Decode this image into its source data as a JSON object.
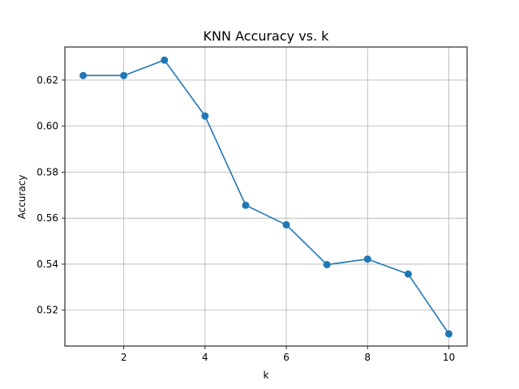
{
  "chart_data": {
    "type": "line",
    "title": "KNN Accuracy vs. k",
    "xlabel": "k",
    "ylabel": "Accuracy",
    "xlim": [
      0.55,
      10.45
    ],
    "ylim": [
      0.5044,
      0.6344
    ],
    "xticks": [
      2,
      4,
      6,
      8,
      10
    ],
    "yticks": [
      0.52,
      0.54,
      0.56,
      0.58,
      0.6,
      0.62
    ],
    "xtick_labels": [
      "2",
      "4",
      "6",
      "8",
      "10"
    ],
    "ytick_labels": [
      "0.52",
      "0.54",
      "0.56",
      "0.58",
      "0.60",
      "0.62"
    ],
    "grid": true,
    "marker": "circle",
    "color": "#1f77b4",
    "x": [
      1,
      2,
      3,
      4,
      5,
      6,
      7,
      8,
      9,
      10
    ],
    "y": [
      0.622,
      0.622,
      0.6287,
      0.6044,
      0.5656,
      0.5571,
      0.5398,
      0.5422,
      0.5357,
      0.5097
    ]
  }
}
